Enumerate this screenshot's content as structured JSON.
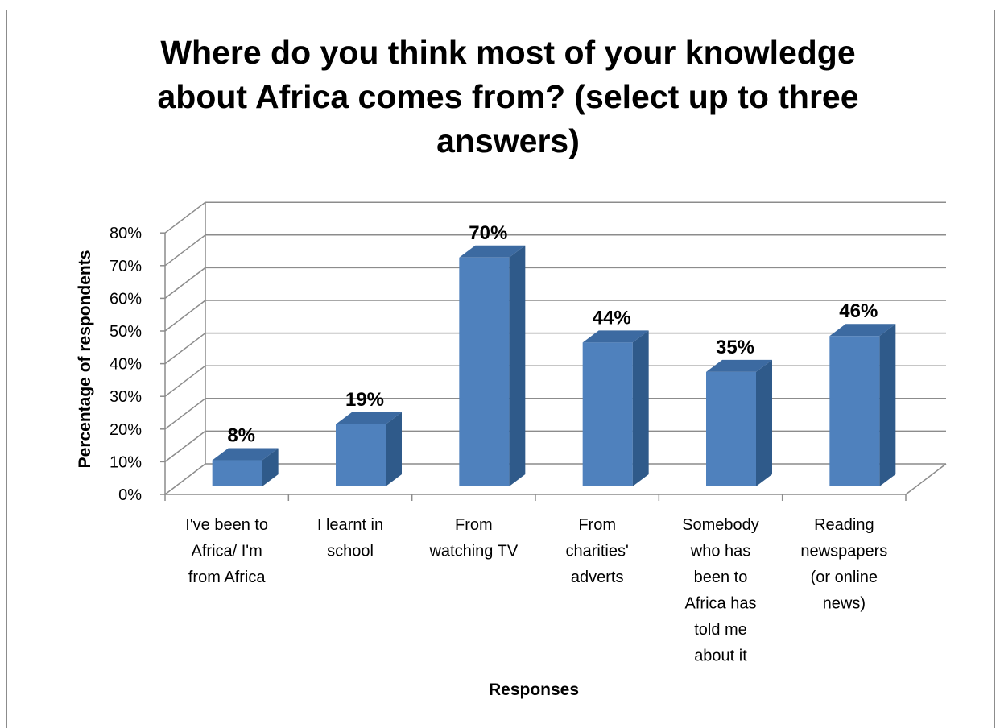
{
  "chart_data": {
    "type": "bar",
    "title": "Where do you think most of your knowledge about Africa comes from? (select up to three answers)",
    "xlabel": "Responses",
    "ylabel": "Percentage of respondents",
    "categories": [
      [
        "I've been to",
        "Africa/ I'm",
        "from Africa"
      ],
      [
        "I learnt in",
        "school"
      ],
      [
        "From",
        "watching TV"
      ],
      [
        "From",
        "charities'",
        "adverts"
      ],
      [
        "Somebody",
        "who has",
        "been to",
        "Africa has",
        "told me",
        "about it"
      ],
      [
        "Reading",
        "newspapers",
        "(or online",
        "news)"
      ]
    ],
    "values": [
      8,
      19,
      70,
      44,
      35,
      46
    ],
    "data_labels": [
      "8%",
      "19%",
      "70%",
      "44%",
      "35%",
      "46%"
    ],
    "yticks": [
      "0%",
      "10%",
      "20%",
      "30%",
      "40%",
      "50%",
      "60%",
      "70%",
      "80%"
    ],
    "ylim": [
      0,
      80
    ],
    "grid": true,
    "style": "3d-column",
    "colors": {
      "bar_front": "#4f81bd",
      "bar_side": "#2f5a8a",
      "bar_top": "#3c6aa1",
      "grid": "#8c8c8c"
    }
  }
}
